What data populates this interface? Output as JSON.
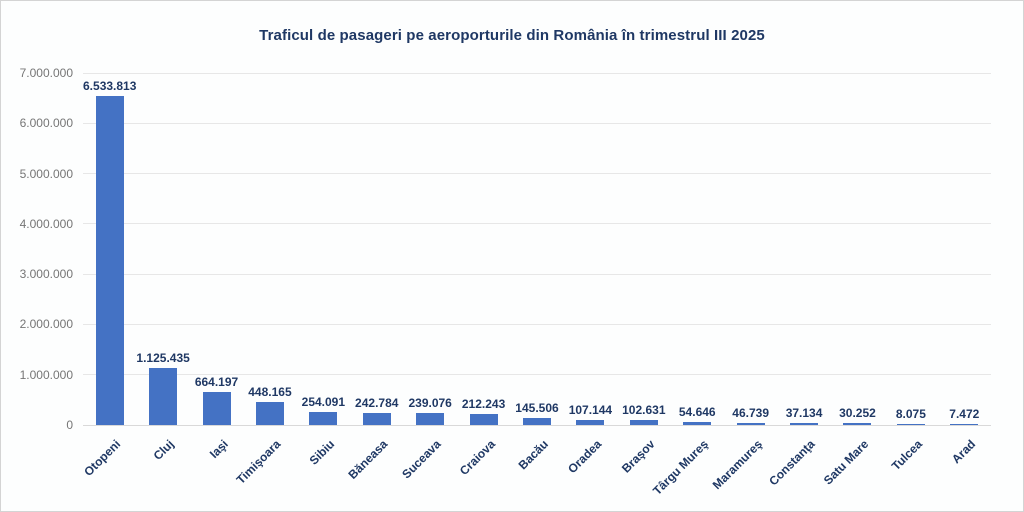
{
  "title": "Traficul de pasageri pe aeroporturile din România în trimestrul III 2025",
  "chart_data": {
    "type": "bar",
    "title": "Traficul de pasageri pe aeroporturile din România în trimestrul III 2025",
    "categories": [
      "Otopeni",
      "Cluj",
      "Iaşi",
      "Timişoara",
      "Sibiu",
      "Băneasa",
      "Suceava",
      "Craiova",
      "Bacău",
      "Oradea",
      "Braşov",
      "Târgu Mureş",
      "Maramureş",
      "Constanţa",
      "Satu Mare",
      "Tulcea",
      "Arad"
    ],
    "values": [
      6533813,
      1125435,
      664197,
      448165,
      254091,
      242784,
      239076,
      212243,
      145506,
      107144,
      102631,
      54646,
      46739,
      37134,
      30252,
      8075,
      7472
    ],
    "value_labels": [
      "6.533.813",
      "1.125.435",
      "664.197",
      "448.165",
      "254.091",
      "242.784",
      "239.076",
      "212.243",
      "145.506",
      "107.144",
      "102.631",
      "54.646",
      "46.739",
      "37.134",
      "30.252",
      "8.075",
      "7.472"
    ],
    "xlabel": "",
    "ylabel": "",
    "ylim": [
      0,
      7000000
    ],
    "y_ticks": [
      {
        "value": 0,
        "label": "0"
      },
      {
        "value": 1000000,
        "label": "1.000.000"
      },
      {
        "value": 2000000,
        "label": "2.000.000"
      },
      {
        "value": 3000000,
        "label": "3.000.000"
      },
      {
        "value": 4000000,
        "label": "4.000.000"
      },
      {
        "value": 5000000,
        "label": "5.000.000"
      },
      {
        "value": 6000000,
        "label": "6.000.000"
      },
      {
        "value": 7000000,
        "label": "7.000.000"
      }
    ],
    "grid": true,
    "legend": false,
    "colors": {
      "bar": "#4472C4",
      "title": "#1F3864",
      "data_label": "#1F3864",
      "category_label": "#1F3864",
      "axis_tick": "#767676",
      "gridline": "#E7E7E7",
      "baseline": "#D9D9D9"
    }
  }
}
